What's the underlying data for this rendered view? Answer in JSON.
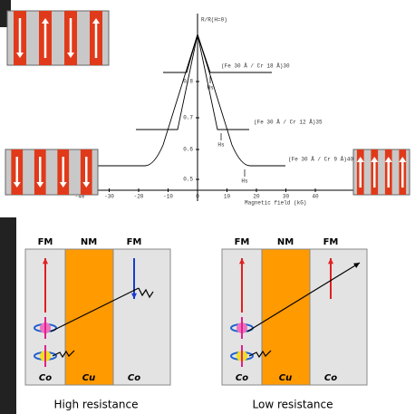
{
  "plot": {
    "y_axis_label": "R/R(H=0)",
    "x_axis_label": "Magnetic field (kG)",
    "x_tick_labels": [
      "-40",
      "-30",
      "-20",
      "-10",
      "0",
      "10",
      "20",
      "30",
      "40"
    ],
    "y_tick_labels": [
      "0.8",
      "0.7",
      "0.6",
      "0.5"
    ],
    "curve_labels": [
      "(Fe 30 Å / Cr 18 Å)30",
      "(Fe 30 Å / Cr 12 Å)35",
      "(Fe 30 Å / Cr 9 Å)40"
    ],
    "saturation_labels": [
      "Hs",
      "Hs",
      "Hs"
    ]
  },
  "left_panel": {
    "layer_types": [
      "FM",
      "NM",
      "FM"
    ],
    "materials": [
      "Co",
      "Cu",
      "Co"
    ],
    "caption": "High resistance"
  },
  "right_panel": {
    "layer_types": [
      "FM",
      "NM",
      "FM"
    ],
    "materials": [
      "Co",
      "Cu",
      "Co"
    ],
    "caption": "Low resistance"
  }
}
